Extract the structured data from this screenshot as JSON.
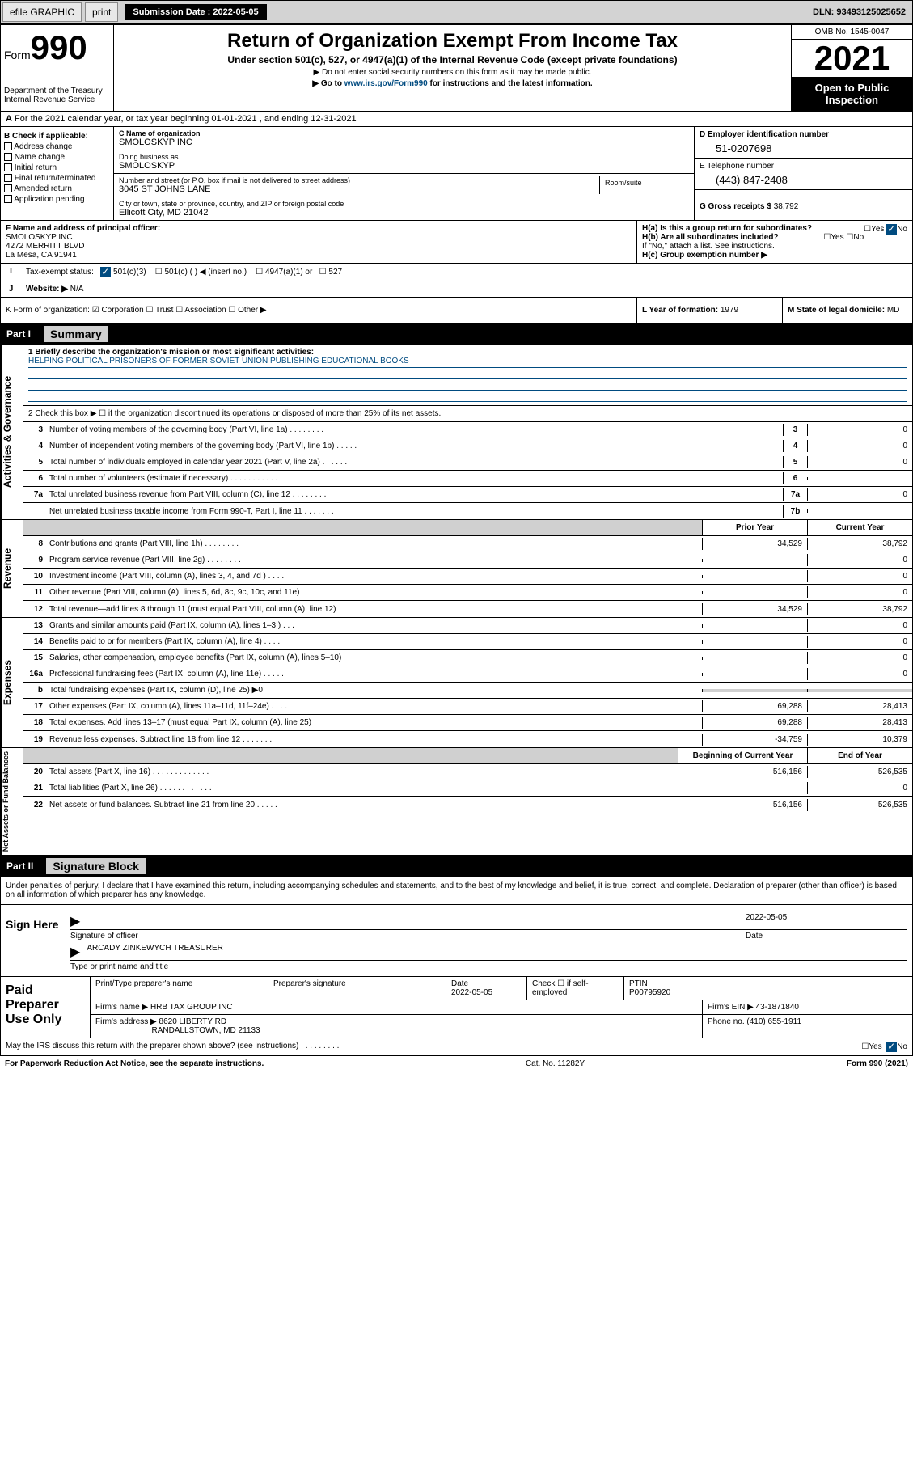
{
  "topbar": {
    "efile": "efile GRAPHIC",
    "print": "print",
    "sub_label": "Submission Date : 2022-05-05",
    "dln": "DLN: 93493125025652"
  },
  "header": {
    "form_prefix": "Form",
    "form_num": "990",
    "title": "Return of Organization Exempt From Income Tax",
    "sub": "Under section 501(c), 527, or 4947(a)(1) of the Internal Revenue Code (except private foundations)",
    "note1": "▶ Do not enter social security numbers on this form as it may be made public.",
    "note2_pre": "▶ Go to ",
    "note2_link": "www.irs.gov/Form990",
    "note2_post": " for instructions and the latest information.",
    "dept": "Department of the Treasury\nInternal Revenue Service",
    "omb": "OMB No. 1545-0047",
    "year": "2021",
    "open_pub": "Open to Public Inspection"
  },
  "line_a": "For the 2021 calendar year, or tax year beginning 01-01-2021   , and ending 12-31-2021",
  "box_b": {
    "title": "B Check if applicable:",
    "items": [
      "Address change",
      "Name change",
      "Initial return",
      "Final return/terminated",
      "Amended return",
      "Application pending"
    ]
  },
  "box_c": {
    "name_label": "C Name of organization",
    "name": "SMOLOSKYP INC",
    "dba_label": "Doing business as",
    "dba": "SMOLOSKYP",
    "addr_label": "Number and street (or P.O. box if mail is not delivered to street address)",
    "room_label": "Room/suite",
    "addr": "3045 ST JOHNS LANE",
    "city_label": "City or town, state or province, country, and ZIP or foreign postal code",
    "city": "Ellicott City, MD  21042"
  },
  "box_d": {
    "label": "D Employer identification number",
    "val": "51-0207698"
  },
  "box_e": {
    "label": "E Telephone number",
    "val": "(443) 847-2408"
  },
  "box_g": {
    "label": "G Gross receipts $",
    "val": "38,792"
  },
  "box_f": {
    "label": "F Name and address of principal officer:",
    "name": "SMOLOSKYP INC",
    "addr1": "4272 MERRITT BLVD",
    "addr2": "La Mesa, CA  91941"
  },
  "box_h": {
    "ha": "H(a)  Is this a group return for subordinates?",
    "ha_ans": "No",
    "hb": "H(b)  Are all subordinates included?",
    "hb_note": "If \"No,\" attach a list. See instructions.",
    "hc": "H(c)  Group exemption number ▶"
  },
  "row_i": {
    "label": "Tax-exempt status:",
    "opts": [
      "501(c)(3)",
      "501(c) (  ) ◀ (insert no.)",
      "4947(a)(1) or",
      "527"
    ]
  },
  "row_j": {
    "label": "Website: ▶",
    "val": "N/A"
  },
  "row_k": "K Form of organization:   ☑ Corporation  ☐ Trust  ☐ Association  ☐ Other ▶",
  "row_l": {
    "label": "L Year of formation:",
    "val": "1979"
  },
  "row_m": {
    "label": "M State of legal domicile:",
    "val": "MD"
  },
  "part1": {
    "num": "Part I",
    "title": "Summary"
  },
  "mission": {
    "label": "1  Briefly describe the organization's mission or most significant activities:",
    "text": "HELPING POLITICAL PRISONERS OF FORMER SOVIET UNION PUBLISHING EDUCATIONAL BOOKS"
  },
  "line2": "2   Check this box ▶ ☐  if the organization discontinued its operations or disposed of more than 25% of its net assets.",
  "gov_rows": [
    {
      "n": "3",
      "d": "Number of voting members of the governing body (Part VI, line 1a)  .   .   .   .   .   .   .   .",
      "b": "3",
      "v": "0"
    },
    {
      "n": "4",
      "d": "Number of independent voting members of the governing body (Part VI, line 1b)  .   .   .   .   .",
      "b": "4",
      "v": "0"
    },
    {
      "n": "5",
      "d": "Total number of individuals employed in calendar year 2021 (Part V, line 2a)  .   .   .   .   .   .",
      "b": "5",
      "v": "0"
    },
    {
      "n": "6",
      "d": "Total number of volunteers (estimate if necessary)  .   .   .   .   .   .   .   .   .   .   .   .",
      "b": "6",
      "v": ""
    },
    {
      "n": "7a",
      "d": "Total unrelated business revenue from Part VIII, column (C), line 12  .   .   .   .   .   .   .   .",
      "b": "7a",
      "v": "0"
    },
    {
      "n": "",
      "d": "Net unrelated business taxable income from Form 990-T, Part I, line 11  .   .   .   .   .   .   .",
      "b": "7b",
      "v": ""
    }
  ],
  "rev_hdr": {
    "prior": "Prior Year",
    "curr": "Current Year"
  },
  "rev_rows": [
    {
      "n": "8",
      "d": "Contributions and grants (Part VIII, line 1h)  .   .   .   .   .   .   .   .",
      "p": "34,529",
      "c": "38,792"
    },
    {
      "n": "9",
      "d": "Program service revenue (Part VIII, line 2g)  .   .   .   .   .   .   .   .",
      "p": "",
      "c": "0"
    },
    {
      "n": "10",
      "d": "Investment income (Part VIII, column (A), lines 3, 4, and 7d )  .   .   .   .",
      "p": "",
      "c": "0"
    },
    {
      "n": "11",
      "d": "Other revenue (Part VIII, column (A), lines 5, 6d, 8c, 9c, 10c, and 11e)",
      "p": "",
      "c": "0"
    },
    {
      "n": "12",
      "d": "Total revenue—add lines 8 through 11 (must equal Part VIII, column (A), line 12)",
      "p": "34,529",
      "c": "38,792"
    }
  ],
  "exp_rows": [
    {
      "n": "13",
      "d": "Grants and similar amounts paid (Part IX, column (A), lines 1–3 )  .   .   .",
      "p": "",
      "c": "0"
    },
    {
      "n": "14",
      "d": "Benefits paid to or for members (Part IX, column (A), line 4)  .   .   .   .",
      "p": "",
      "c": "0"
    },
    {
      "n": "15",
      "d": "Salaries, other compensation, employee benefits (Part IX, column (A), lines 5–10)",
      "p": "",
      "c": "0"
    },
    {
      "n": "16a",
      "d": "Professional fundraising fees (Part IX, column (A), line 11e)  .   .   .   .   .",
      "p": "",
      "c": "0"
    },
    {
      "n": "b",
      "d": "Total fundraising expenses (Part IX, column (D), line 25) ▶0",
      "p": "shade",
      "c": "shade"
    },
    {
      "n": "17",
      "d": "Other expenses (Part IX, column (A), lines 11a–11d, 11f–24e)  .   .   .   .",
      "p": "69,288",
      "c": "28,413"
    },
    {
      "n": "18",
      "d": "Total expenses. Add lines 13–17 (must equal Part IX, column (A), line 25)",
      "p": "69,288",
      "c": "28,413"
    },
    {
      "n": "19",
      "d": "Revenue less expenses. Subtract line 18 from line 12  .   .   .   .   .   .   .",
      "p": "-34,759",
      "c": "10,379"
    }
  ],
  "net_hdr": {
    "prior": "Beginning of Current Year",
    "curr": "End of Year"
  },
  "net_rows": [
    {
      "n": "20",
      "d": "Total assets (Part X, line 16)  .   .   .   .   .   .   .   .   .   .   .   .   .",
      "p": "516,156",
      "c": "526,535"
    },
    {
      "n": "21",
      "d": "Total liabilities (Part X, line 26)  .   .   .   .   .   .   .   .   .   .   .   .",
      "p": "",
      "c": "0"
    },
    {
      "n": "22",
      "d": "Net assets or fund balances. Subtract line 21 from line 20  .   .   .   .   .",
      "p": "516,156",
      "c": "526,535"
    }
  ],
  "sidebars": {
    "gov": "Activities & Governance",
    "rev": "Revenue",
    "exp": "Expenses",
    "net": "Net Assets or Fund Balances"
  },
  "part2": {
    "num": "Part II",
    "title": "Signature Block"
  },
  "sig_decl": "Under penalties of perjury, I declare that I have examined this return, including accompanying schedules and statements, and to the best of my knowledge and belief, it is true, correct, and complete. Declaration of preparer (other than officer) is based on all information of which preparer has any knowledge.",
  "sign_here": {
    "label": "Sign Here",
    "sig_label": "Signature of officer",
    "date": "2022-05-05",
    "date_label": "Date",
    "name": "ARCADY ZINKEWYCH TREASURER",
    "name_label": "Type or print name and title"
  },
  "prep": {
    "label": "Paid Preparer Use Only",
    "h1": "Print/Type preparer's name",
    "h2": "Preparer's signature",
    "h3": "Date",
    "date": "2022-05-05",
    "h4": "Check ☐ if self-employed",
    "h5": "PTIN",
    "ptin": "P00795920",
    "firm_name_l": "Firm's name    ▶",
    "firm_name": "HRB TAX GROUP INC",
    "firm_ein_l": "Firm's EIN ▶",
    "firm_ein": "43-1871840",
    "firm_addr_l": "Firm's address ▶",
    "firm_addr1": "8620 LIBERTY RD",
    "firm_addr2": "RANDALLSTOWN, MD  21133",
    "phone_l": "Phone no.",
    "phone": "(410) 655-1911"
  },
  "footer": {
    "discuss": "May the IRS discuss this return with the preparer shown above? (see instructions)  .   .   .   .   .   .   .   .   .",
    "yes": "Yes",
    "no": "No"
  },
  "bottom": {
    "left": "For Paperwork Reduction Act Notice, see the separate instructions.",
    "mid": "Cat. No. 11282Y",
    "right": "Form 990 (2021)"
  },
  "colors": {
    "link": "#004b80",
    "shade": "#d0d0d0"
  }
}
